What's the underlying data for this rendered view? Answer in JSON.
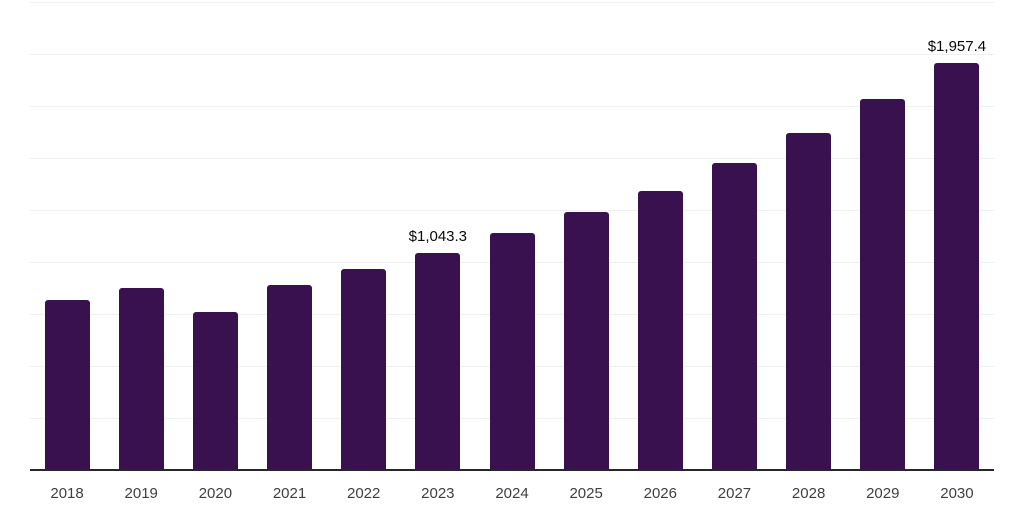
{
  "chart": {
    "background": "#ffffff",
    "bar_color": "#38114e",
    "grid_color": "#f0f0f0",
    "axis_color": "#26262b",
    "tick_label_color": "#3f3f3f",
    "data_label_color": "#0a0a0a"
  },
  "chart_data": {
    "type": "bar",
    "categories": [
      "2018",
      "2019",
      "2020",
      "2021",
      "2022",
      "2023",
      "2024",
      "2025",
      "2026",
      "2027",
      "2028",
      "2029",
      "2030"
    ],
    "values": [
      815,
      876,
      758,
      888,
      967,
      1043.3,
      1140,
      1241,
      1343,
      1476,
      1621,
      1782,
      1957.4
    ],
    "data_labels": [
      {
        "category": "2023",
        "text": "$1,043.3"
      },
      {
        "category": "2030",
        "text": "$1,957.4"
      }
    ],
    "title": "",
    "xlabel": "",
    "ylabel": "",
    "ylim": [
      0,
      2250
    ],
    "grid_step": 250,
    "grid": "horizontal-only",
    "legend": "none",
    "y_axis_tick_labels": "none",
    "x_axis_line": true
  }
}
